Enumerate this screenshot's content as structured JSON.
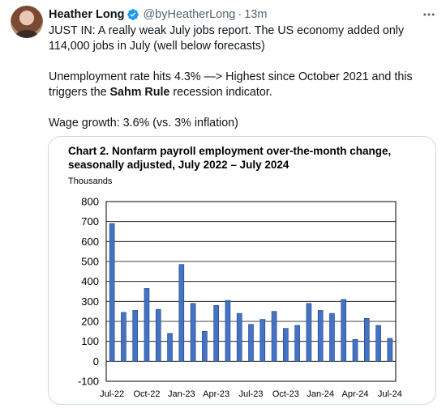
{
  "author": {
    "display_name": "Heather Long",
    "handle": "@byHeatherLong",
    "separator": "·",
    "timestamp": "13m",
    "verified_icon": "verified-badge-icon",
    "verified_color": "#1d9bf0"
  },
  "tweet": {
    "line1": "JUST IN: A really weak July jobs report. The US economy added only 114,000 jobs in July (well below forecasts)",
    "line2": "Unemployment rate hits 4.3% —> Highest since October 2021 and this triggers the ",
    "line2_bold": "Sahm Rule",
    "line2_end": " recession indicator.",
    "line3": "Wage growth: 3.6% (vs. 3% inflation)"
  },
  "more_icon": "more-dots-icon",
  "chart_data": {
    "type": "bar",
    "title": "Chart 2. Nonfarm payroll employment over-the-month change, seasonally adjusted, July 2022 – July 2024",
    "units_label": "Thousands",
    "ylim": [
      -100,
      800
    ],
    "yticks": [
      800,
      700,
      600,
      500,
      400,
      300,
      200,
      100,
      0,
      -100
    ],
    "xtick_labels": [
      "Jul-22",
      "Oct-22",
      "Jan-23",
      "Apr-23",
      "Jul-23",
      "Oct-23",
      "Jan-24",
      "Apr-24",
      "Jul-24"
    ],
    "categories": [
      "Jul-22",
      "Aug-22",
      "Sep-22",
      "Oct-22",
      "Nov-22",
      "Dec-22",
      "Jan-23",
      "Feb-23",
      "Mar-23",
      "Apr-23",
      "May-23",
      "Jun-23",
      "Jul-23",
      "Aug-23",
      "Sep-23",
      "Oct-23",
      "Nov-23",
      "Dec-23",
      "Jan-24",
      "Feb-24",
      "Mar-24",
      "Apr-24",
      "May-24",
      "Jun-24",
      "Jul-24"
    ],
    "values": [
      690,
      245,
      255,
      365,
      260,
      140,
      485,
      290,
      150,
      280,
      305,
      240,
      185,
      210,
      250,
      165,
      180,
      290,
      255,
      240,
      310,
      110,
      215,
      180,
      115
    ],
    "bar_color": "#4472c4",
    "grid": true
  }
}
